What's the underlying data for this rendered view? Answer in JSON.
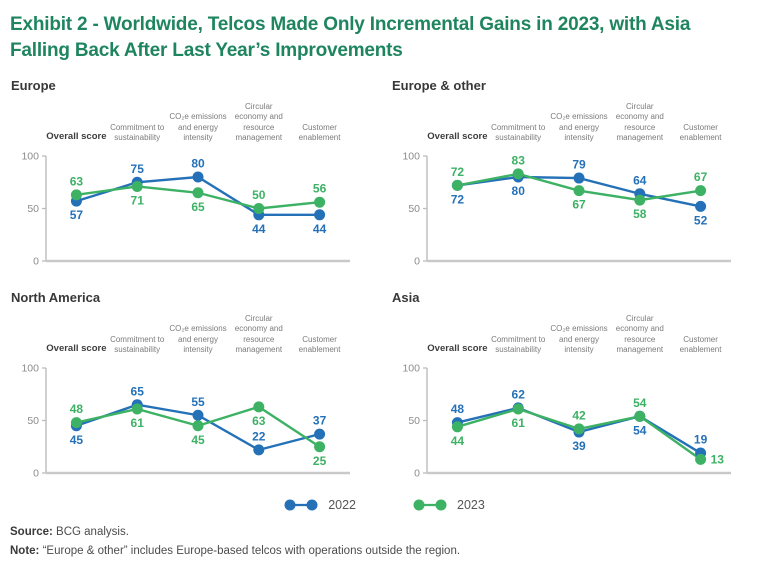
{
  "title": "Exhibit 2 - Worldwide, Telcos Made Only Incremental Gains in 2023, with Asia Falling Back After Last Year’s Improvements",
  "colors": {
    "title_green": "#1f8560",
    "blue_2022": "#2471b8",
    "green_2023": "#3db264",
    "axis_line": "#bcbcbc",
    "baseline": "#c9c9c9",
    "tick_text": "#8c8c8c"
  },
  "axis": {
    "ticks": [
      100,
      50,
      0
    ],
    "ymin": 0,
    "ymax": 100
  },
  "categories": [
    "Overall score",
    "Commitment to sustainability",
    "CO₂e emissions and energy intensity",
    "Circular economy and resource management",
    "Customer enablement"
  ],
  "chart_data": [
    {
      "type": "line",
      "region": "Europe",
      "categories": [
        "Overall score",
        "Commitment to sustainability",
        "CO₂e emissions and energy intensity",
        "Circular economy and resource management",
        "Customer enablement"
      ],
      "ylim": [
        0,
        100
      ],
      "series": [
        {
          "name": "2022",
          "color": "#2471b8",
          "values": [
            57,
            75,
            80,
            44,
            44
          ],
          "label_pos": [
            "below",
            "above",
            "above",
            "below",
            "below"
          ]
        },
        {
          "name": "2023",
          "color": "#3db264",
          "values": [
            63,
            71,
            65,
            50,
            56
          ],
          "label_pos": [
            "above",
            "below",
            "below",
            "above",
            "above"
          ]
        }
      ]
    },
    {
      "type": "line",
      "region": "Europe & other",
      "categories": [
        "Overall score",
        "Commitment to sustainability",
        "CO₂e emissions and energy intensity",
        "Circular economy and resource management",
        "Customer enablement"
      ],
      "ylim": [
        0,
        100
      ],
      "series": [
        {
          "name": "2022",
          "color": "#2471b8",
          "values": [
            72,
            80,
            79,
            64,
            52
          ],
          "label_pos": [
            "below",
            "below",
            "above",
            "above",
            "below"
          ]
        },
        {
          "name": "2023",
          "color": "#3db264",
          "values": [
            72,
            83,
            67,
            58,
            67
          ],
          "label_pos": [
            "above",
            "above",
            "below",
            "below",
            "above"
          ]
        }
      ]
    },
    {
      "type": "line",
      "region": "North America",
      "categories": [
        "Overall score",
        "Commitment to sustainability",
        "CO₂e emissions and energy intensity",
        "Circular economy and resource management",
        "Customer enablement"
      ],
      "ylim": [
        0,
        100
      ],
      "series": [
        {
          "name": "2022",
          "color": "#2471b8",
          "values": [
            45,
            65,
            55,
            22,
            37
          ],
          "label_pos": [
            "below",
            "above",
            "above",
            "above",
            "above"
          ]
        },
        {
          "name": "2023",
          "color": "#3db264",
          "values": [
            48,
            61,
            45,
            63,
            25
          ],
          "label_pos": [
            "above",
            "below",
            "below",
            "below",
            "below"
          ]
        }
      ]
    },
    {
      "type": "line",
      "region": "Asia",
      "categories": [
        "Overall score",
        "Commitment to sustainability",
        "CO₂e emissions and energy intensity",
        "Circular economy and resource management",
        "Customer enablement"
      ],
      "ylim": [
        0,
        100
      ],
      "series": [
        {
          "name": "2022",
          "color": "#2471b8",
          "values": [
            48,
            62,
            39,
            54,
            19
          ],
          "label_pos": [
            "above",
            "above",
            "below",
            "below",
            "above"
          ]
        },
        {
          "name": "2023",
          "color": "#3db264",
          "values": [
            44,
            61,
            42,
            54,
            13
          ],
          "label_pos": [
            "below",
            "below",
            "above",
            "above",
            "right"
          ]
        }
      ]
    }
  ],
  "legend": [
    {
      "label": "2022",
      "color": "#2471b8"
    },
    {
      "label": "2023",
      "color": "#3db264"
    }
  ],
  "footer": {
    "source_label": "Source:",
    "source_text": "BCG analysis.",
    "note_label": "Note:",
    "note_text": "“Europe & other” includes Europe-based telcos with operations outside the region."
  }
}
